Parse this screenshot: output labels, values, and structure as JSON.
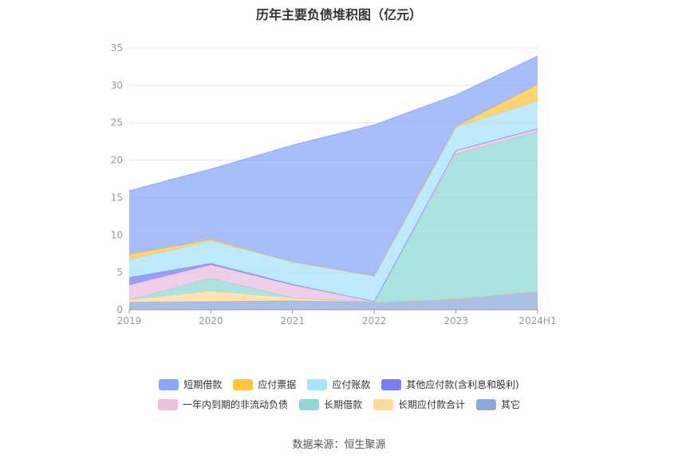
{
  "chart_data": {
    "type": "area",
    "stacked": true,
    "title": "历年主要负债堆积图（亿元）",
    "categories": [
      "2019",
      "2020",
      "2021",
      "2022",
      "2023",
      "2024H1"
    ],
    "y_ticks": [
      "0",
      "5",
      "10",
      "15",
      "20",
      "25",
      "30",
      "35"
    ],
    "ylim": [
      0,
      35
    ],
    "grid": true,
    "legend_position": "bottom",
    "series": [
      {
        "name": "其它",
        "color": "#8eaadb",
        "values": [
          1.0,
          1.1,
          1.2,
          1.0,
          1.5,
          2.5
        ]
      },
      {
        "name": "长期应付款合计",
        "color": "#ffd99a",
        "values": [
          0.3,
          1.4,
          0.4,
          0.0,
          0.0,
          0.0
        ]
      },
      {
        "name": "长期借款",
        "color": "#8ed9d6",
        "values": [
          0.0,
          1.7,
          0.0,
          0.0,
          19.3,
          21.3
        ]
      },
      {
        "name": "一年内到期的非流动负债",
        "color": "#ebbddf",
        "values": [
          2.0,
          1.8,
          1.7,
          0.1,
          0.5,
          0.4
        ]
      },
      {
        "name": "其他应付款(含利息和股利)",
        "color": "#7a7ff0",
        "values": [
          1.0,
          0.2,
          0.1,
          0.0,
          0.0,
          0.0
        ]
      },
      {
        "name": "应付账款",
        "color": "#a9e2fb",
        "values": [
          2.4,
          3.0,
          3.0,
          3.4,
          3.1,
          3.7
        ]
      },
      {
        "name": "应付票据",
        "color": "#ffc53d",
        "values": [
          0.7,
          0.2,
          0.0,
          0.0,
          0.1,
          2.2
        ]
      },
      {
        "name": "短期借款",
        "color": "#8aa8fa",
        "values": [
          8.5,
          9.4,
          15.6,
          20.2,
          4.2,
          3.8
        ]
      }
    ],
    "legend_rows": [
      [
        {
          "name": "短期借款",
          "color": "#8aa8fa"
        },
        {
          "name": "应付票据",
          "color": "#ffc53d"
        },
        {
          "name": "应付账款",
          "color": "#a9e2fb"
        },
        {
          "name": "其他应付款(含利息和股利)",
          "color": "#7a7ff0"
        }
      ],
      [
        {
          "name": "一年内到期的非流动负债",
          "color": "#ebbddf"
        },
        {
          "name": "长期借款",
          "color": "#8ed9d6"
        },
        {
          "name": "长期应付款合计",
          "color": "#ffd99a"
        },
        {
          "name": "其它",
          "color": "#8eaadb"
        }
      ]
    ]
  },
  "source": "数据来源：恒生聚源"
}
